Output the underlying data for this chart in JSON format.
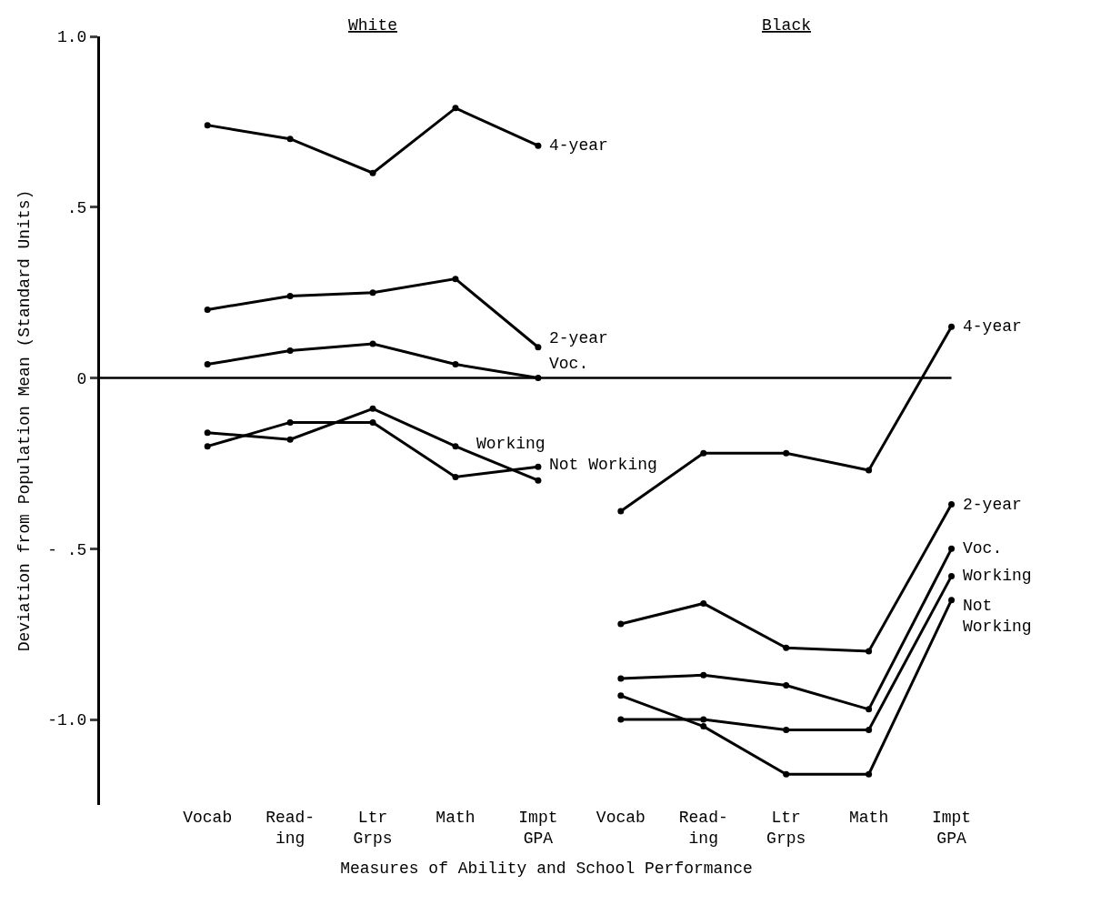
{
  "chart_data": {
    "type": "line",
    "xlabel": "Measures of Ability and School Performance",
    "ylabel": "Deviation from Population Mean (Standard Units)",
    "annotations": [
      "White",
      "Black"
    ],
    "categories": [
      "Vocab",
      "Read-\ning",
      "Ltr\nGrps",
      "Math",
      "Impt\nGPA",
      "Vocab",
      "Read-\ning",
      "Ltr\nGrps",
      "Math",
      "Impt\nGPA"
    ],
    "series": [
      {
        "name": "4-year",
        "color": "#000000",
        "values": [
          0.74,
          0.7,
          0.6,
          0.79,
          0.68,
          null,
          null,
          null,
          null,
          null
        ]
      },
      {
        "name": "2-year",
        "color": "#000000",
        "values": [
          0.2,
          0.24,
          0.25,
          0.29,
          0.09,
          null,
          null,
          null,
          null,
          null
        ]
      },
      {
        "name": "Voc.",
        "color": "#000000",
        "values": [
          0.04,
          0.08,
          0.1,
          0.04,
          0.0,
          null,
          null,
          null,
          null,
          null
        ]
      },
      {
        "name": "Working",
        "color": "#000000",
        "values": [
          -0.16,
          -0.18,
          -0.09,
          -0.2,
          -0.3,
          null,
          null,
          null,
          null,
          null
        ]
      },
      {
        "name": "Not Working",
        "color": "#000000",
        "values": [
          -0.2,
          -0.13,
          -0.13,
          -0.29,
          -0.26,
          null,
          null,
          null,
          null,
          null
        ]
      },
      {
        "name": "4-year",
        "color": "#000000",
        "values": [
          null,
          null,
          null,
          null,
          null,
          -0.39,
          -0.22,
          -0.22,
          -0.27,
          0.15
        ]
      },
      {
        "name": "2-year",
        "color": "#000000",
        "values": [
          null,
          null,
          null,
          null,
          null,
          -0.72,
          -0.66,
          -0.79,
          -0.8,
          -0.37
        ]
      },
      {
        "name": "Voc.",
        "color": "#000000",
        "values": [
          null,
          null,
          null,
          null,
          null,
          -0.88,
          -0.87,
          -0.9,
          -0.97,
          -0.5
        ]
      },
      {
        "name": "Working",
        "color": "#000000",
        "values": [
          null,
          null,
          null,
          null,
          null,
          -1.0,
          -1.0,
          -1.03,
          -1.03,
          -0.58
        ]
      },
      {
        "name": "Not\nWorking",
        "color": "#000000",
        "values": [
          null,
          null,
          null,
          null,
          null,
          -0.93,
          -1.02,
          -1.16,
          -1.16,
          -0.65
        ]
      }
    ],
    "ylim": [
      -1.25,
      1.0
    ],
    "yticks": [
      {
        "value": 1.0,
        "label": "1.0"
      },
      {
        "value": 0.5,
        "label": ".5"
      },
      0,
      {
        "value": -0.5,
        "label": "- .5"
      },
      {
        "value": -1.0,
        "label": "-1.0"
      }
    ],
    "ref_lines": [
      {
        "axis": "y",
        "value": 0,
        "color": "#000000"
      }
    ],
    "legend": false,
    "marker": "circle",
    "line_style": "solid"
  }
}
